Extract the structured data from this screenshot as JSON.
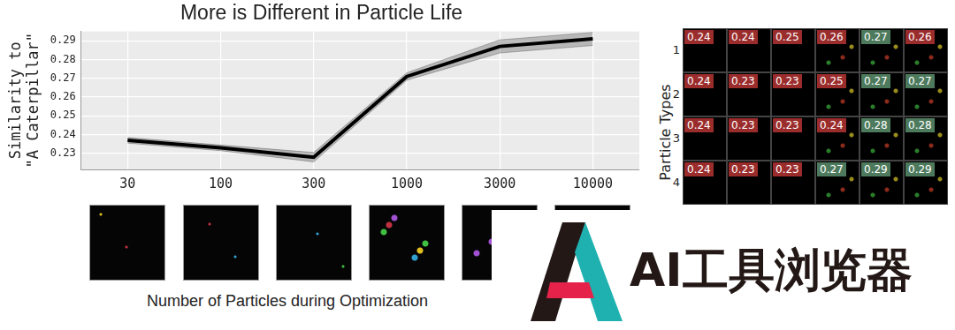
{
  "chart_data": {
    "type": "line",
    "title": "More is Different in Particle Life",
    "x_label": "Number of Particles during Optimization",
    "y_label": [
      "Similarity to",
      "\"A Caterpillar\""
    ],
    "categories": [
      "30",
      "100",
      "300",
      "1000",
      "3000",
      "10000"
    ],
    "values": [
      0.237,
      0.233,
      0.228,
      0.271,
      0.287,
      0.291
    ],
    "error": [
      0.0015,
      0.0015,
      0.0025,
      0.002,
      0.0035,
      0.0035
    ],
    "color": "#000000",
    "ylim": [
      0.2215,
      0.295
    ],
    "yticks": [
      0.23,
      0.24,
      0.25,
      0.26,
      0.27,
      0.28,
      0.29
    ],
    "grid": true
  },
  "heatmap_panel": {
    "y_label": "Particle Types",
    "row_labels": [
      1,
      2,
      3,
      4
    ],
    "cells": [
      [
        0.24,
        0.24,
        0.25,
        0.26,
        0.27,
        0.26
      ],
      [
        0.24,
        0.23,
        0.23,
        0.25,
        0.27,
        0.27
      ],
      [
        0.24,
        0.23,
        0.23,
        0.24,
        0.28,
        0.28
      ],
      [
        0.24,
        0.23,
        0.23,
        0.27,
        0.29,
        0.29
      ]
    ]
  },
  "watermark": "AI工具浏览器"
}
